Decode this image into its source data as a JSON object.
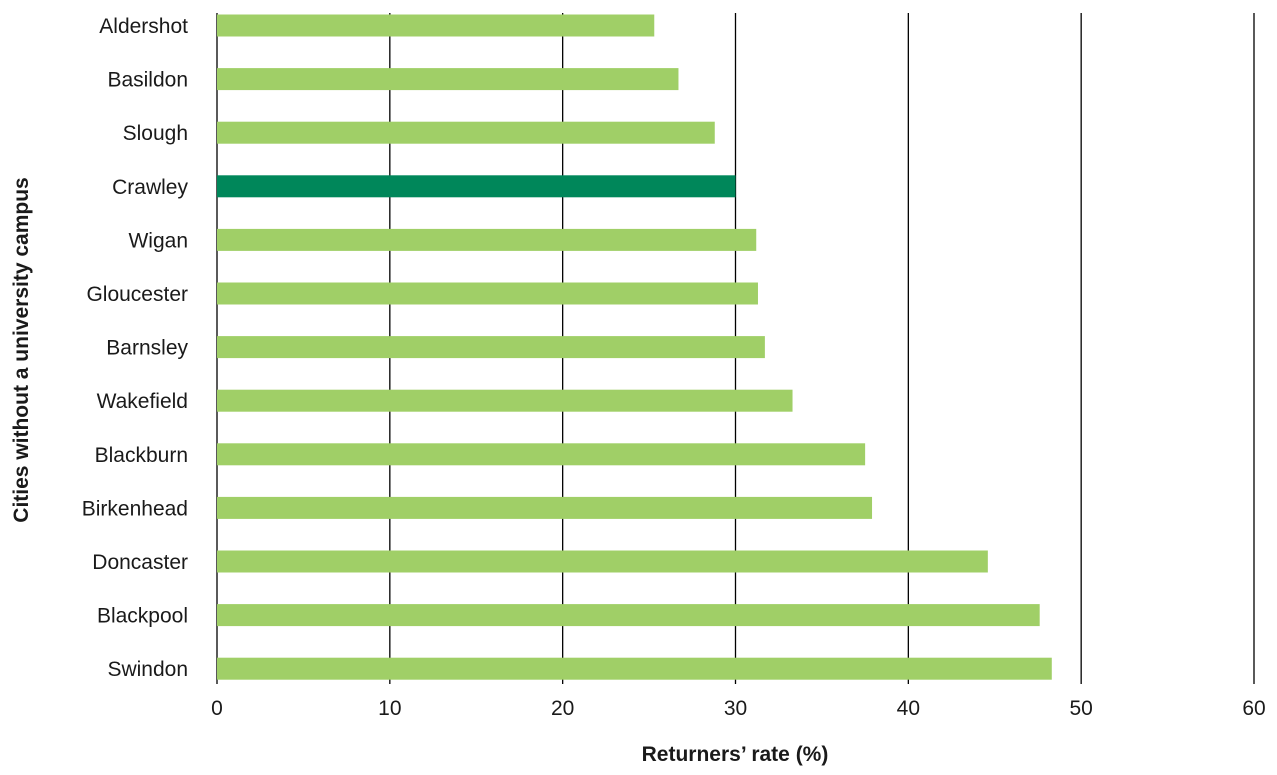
{
  "chart_data": {
    "type": "bar",
    "orientation": "horizontal",
    "title": "",
    "xlabel": "Returners’ rate (%)",
    "ylabel": "Cities without a university campus",
    "xlim": [
      0,
      60
    ],
    "xticks": [
      0,
      10,
      20,
      30,
      40,
      50,
      60
    ],
    "xtick_labels": [
      "0",
      "10",
      "20",
      "30",
      "40",
      "50",
      "60"
    ],
    "grid": "vertical gridlines",
    "legend": "none",
    "categories": [
      "Aldershot",
      "Basildon",
      "Slough",
      "Crawley",
      "Wigan",
      "Gloucester",
      "Barnsley",
      "Wakefield",
      "Blackburn",
      "Birkenhead",
      "Doncaster",
      "Blackpool",
      "Swindon"
    ],
    "values": [
      25.3,
      26.7,
      28.8,
      30.0,
      31.2,
      31.3,
      31.7,
      33.3,
      37.5,
      37.9,
      44.6,
      47.6,
      48.3
    ],
    "highlight_category": "Crawley",
    "colors": {
      "bar": "#a0cf67",
      "highlight": "#00875a",
      "grid": "#000000",
      "text": "#1a1a1a"
    }
  }
}
